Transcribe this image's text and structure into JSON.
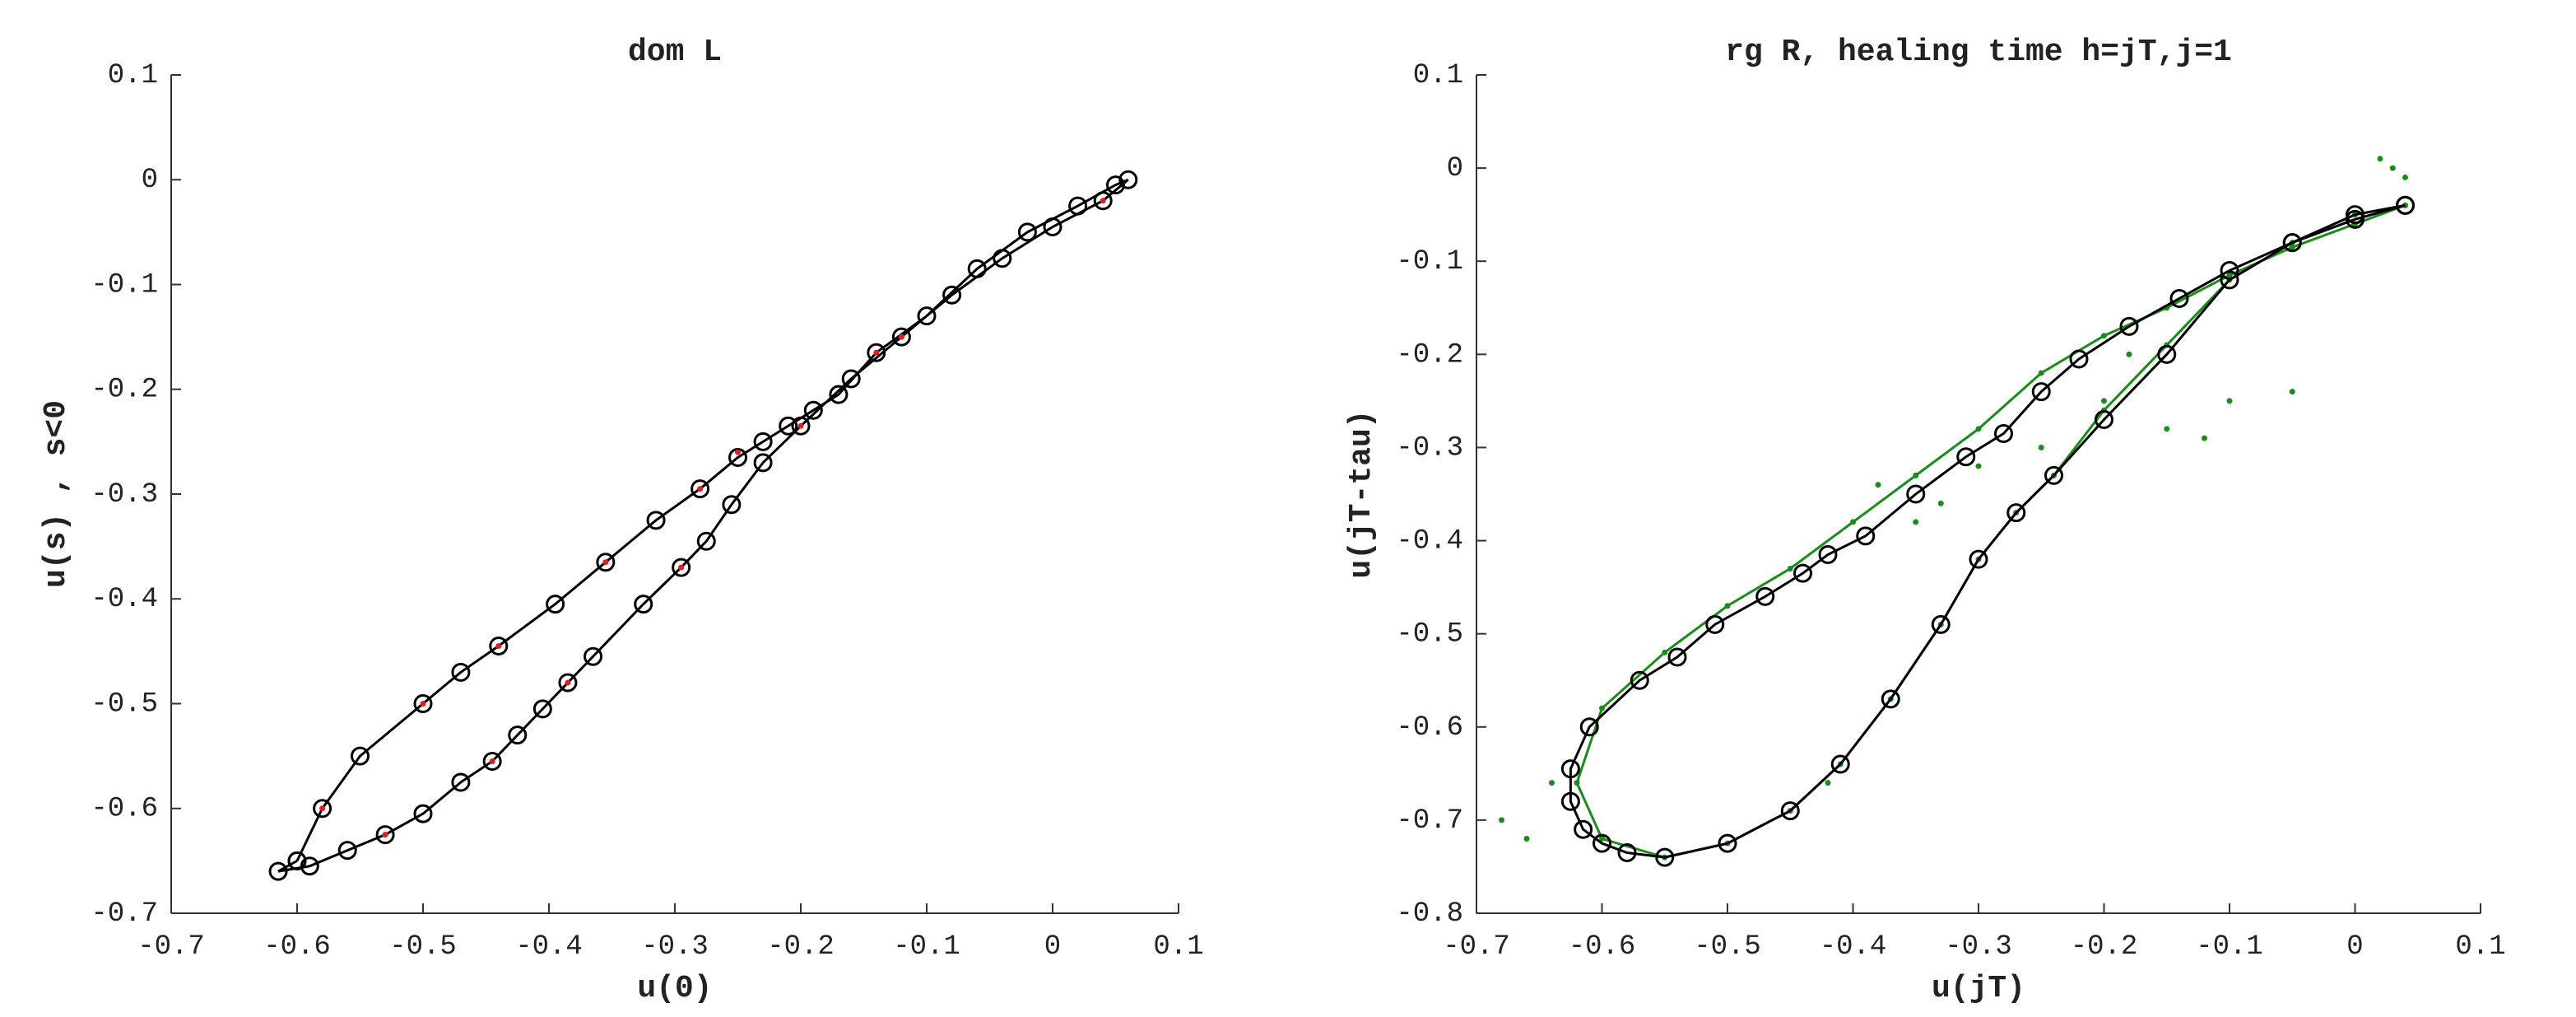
{
  "chart_data": [
    {
      "type": "line",
      "title": "dom L",
      "xlabel": "u(0)",
      "ylabel": "u(s) , s<0",
      "xlim": [
        -0.7,
        0.1
      ],
      "ylim": [
        -0.7,
        0.1
      ],
      "xticks": [
        -0.7,
        -0.6,
        -0.5,
        -0.4,
        -0.3,
        -0.2,
        -0.1,
        0,
        0.1
      ],
      "yticks": [
        -0.7,
        -0.6,
        -0.5,
        -0.4,
        -0.3,
        -0.2,
        -0.1,
        0,
        0.1
      ],
      "series": [
        {
          "color": "#000000",
          "marker": "circle",
          "line": true,
          "x": [
            -0.6,
            -0.58,
            -0.55,
            -0.5,
            -0.47,
            -0.44,
            -0.395,
            -0.355,
            -0.315,
            -0.28,
            -0.25,
            -0.23,
            -0.21,
            -0.19,
            -0.17,
            -0.14,
            -0.1,
            -0.06,
            -0.02,
            0.02,
            0.05,
            0.06,
            0.04,
            0,
            -0.04,
            -0.08,
            -0.12,
            -0.16,
            -0.2,
            -0.23,
            -0.255,
            -0.275,
            -0.295,
            -0.325,
            -0.365,
            -0.385,
            -0.405,
            -0.425,
            -0.445,
            -0.47,
            -0.5,
            -0.53,
            -0.56,
            -0.59,
            -0.615,
            -0.6
          ],
          "y": [
            -0.65,
            -0.6,
            -0.55,
            -0.5,
            -0.47,
            -0.445,
            -0.405,
            -0.365,
            -0.325,
            -0.295,
            -0.265,
            -0.25,
            -0.235,
            -0.22,
            -0.205,
            -0.165,
            -0.13,
            -0.085,
            -0.05,
            -0.025,
            -0.005,
            0,
            -0.02,
            -0.045,
            -0.075,
            -0.11,
            -0.15,
            -0.19,
            -0.235,
            -0.27,
            -0.31,
            -0.345,
            -0.37,
            -0.405,
            -0.455,
            -0.48,
            -0.505,
            -0.53,
            -0.555,
            -0.575,
            -0.605,
            -0.625,
            -0.64,
            -0.655,
            -0.66,
            -0.65
          ]
        },
        {
          "color": "#e02020",
          "marker": "dot",
          "line": false,
          "x": [
            -0.58,
            -0.5,
            -0.44,
            -0.355,
            -0.28,
            -0.25,
            -0.14,
            0.04,
            -0.12,
            -0.2,
            -0.295,
            -0.385,
            -0.445,
            -0.53
          ],
          "y": [
            -0.6,
            -0.5,
            -0.445,
            -0.365,
            -0.295,
            -0.26,
            -0.165,
            -0.02,
            -0.15,
            -0.235,
            -0.37,
            -0.48,
            -0.555,
            -0.625
          ]
        }
      ]
    },
    {
      "type": "line",
      "title": "rg R, healing time h=jT,j=1",
      "xlabel": "u(jT)",
      "ylabel": "u(jT-tau)",
      "xlim": [
        -0.7,
        0.1
      ],
      "ylim": [
        -0.8,
        0.1
      ],
      "xticks": [
        -0.7,
        -0.6,
        -0.5,
        -0.4,
        -0.3,
        -0.2,
        -0.1,
        0,
        0.1
      ],
      "yticks": [
        -0.8,
        -0.7,
        -0.6,
        -0.5,
        -0.4,
        -0.3,
        -0.2,
        -0.1,
        0,
        0.1
      ],
      "series": [
        {
          "color": "#1a8c1a",
          "marker": "dot",
          "line": true,
          "x": [
            0.04,
            0,
            -0.05,
            -0.1,
            -0.15,
            -0.2,
            -0.25,
            -0.3,
            -0.35,
            -0.4,
            -0.45,
            -0.5,
            -0.55,
            -0.6,
            -0.62,
            -0.6,
            -0.55,
            -0.5,
            -0.45,
            -0.41,
            -0.37,
            -0.33,
            -0.3,
            -0.27,
            -0.24,
            -0.2,
            -0.15,
            -0.1,
            -0.05,
            0,
            0.04
          ],
          "y": [
            -0.04,
            -0.06,
            -0.085,
            -0.115,
            -0.15,
            -0.18,
            -0.22,
            -0.28,
            -0.33,
            -0.38,
            -0.43,
            -0.47,
            -0.52,
            -0.58,
            -0.66,
            -0.72,
            -0.74,
            -0.725,
            -0.69,
            -0.64,
            -0.57,
            -0.49,
            -0.42,
            -0.37,
            -0.33,
            -0.26,
            -0.19,
            -0.12,
            -0.08,
            -0.05,
            -0.04
          ]
        },
        {
          "color": "#1a8c1a",
          "marker": "dot",
          "line": false,
          "x": [
            -0.68,
            -0.66,
            -0.64,
            -0.35,
            -0.38,
            -0.3,
            -0.2,
            -0.15,
            -0.1,
            -0.05,
            0.02,
            0.04,
            0.03,
            -0.42,
            -0.33,
            -0.25,
            -0.18,
            -0.12
          ],
          "y": [
            -0.7,
            -0.72,
            -0.66,
            -0.38,
            -0.34,
            -0.32,
            -0.25,
            -0.28,
            -0.25,
            -0.24,
            0.01,
            -0.01,
            0.0,
            -0.66,
            -0.36,
            -0.3,
            -0.2,
            -0.29
          ]
        },
        {
          "color": "#000000",
          "marker": "circle",
          "line": true,
          "x": [
            0.04,
            0,
            -0.05,
            -0.1,
            -0.14,
            -0.18,
            -0.22,
            -0.25,
            -0.28,
            -0.31,
            -0.35,
            -0.39,
            -0.42,
            -0.44,
            -0.47,
            -0.51,
            -0.54,
            -0.57,
            -0.61,
            -0.625,
            -0.625,
            -0.615,
            -0.6,
            -0.58,
            -0.55,
            -0.5,
            -0.45,
            -0.41,
            -0.37,
            -0.33,
            -0.3,
            -0.27,
            -0.24,
            -0.2,
            -0.15,
            -0.1,
            -0.05,
            0,
            0.04
          ],
          "y": [
            -0.04,
            -0.055,
            -0.08,
            -0.11,
            -0.14,
            -0.17,
            -0.205,
            -0.24,
            -0.285,
            -0.31,
            -0.35,
            -0.395,
            -0.415,
            -0.435,
            -0.46,
            -0.49,
            -0.525,
            -0.55,
            -0.6,
            -0.645,
            -0.68,
            -0.71,
            -0.725,
            -0.735,
            -0.74,
            -0.725,
            -0.69,
            -0.64,
            -0.57,
            -0.49,
            -0.42,
            -0.37,
            -0.33,
            -0.27,
            -0.2,
            -0.12,
            -0.08,
            -0.05,
            -0.04
          ]
        }
      ]
    }
  ]
}
